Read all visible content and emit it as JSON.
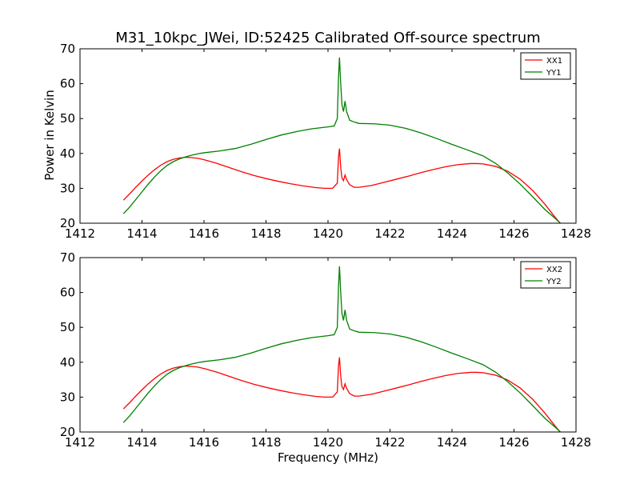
{
  "chart_data": {
    "type": "line",
    "title": "M31_10kpc_JWei, ID:52425 Calibrated Off-source spectrum",
    "xlabel": "Frequency (MHz)",
    "ylabel": "Power in Kelvin",
    "grid": false,
    "panels": [
      {
        "xlim": [
          1412,
          1428
        ],
        "ylim": [
          20,
          70
        ],
        "xticks": [
          "1412",
          "1414",
          "1416",
          "1418",
          "1420",
          "1422",
          "1424",
          "1426",
          "1428"
        ],
        "yticks": [
          "20",
          "30",
          "40",
          "50",
          "60",
          "70"
        ],
        "legend_position": "top-right",
        "series": [
          {
            "name": "XX1",
            "color": "#ff0000",
            "points": [
              [
                1413.4,
                26.6
              ],
              [
                1413.6,
                28.4
              ],
              [
                1413.8,
                30.3
              ],
              [
                1414.0,
                32.1
              ],
              [
                1414.2,
                33.8
              ],
              [
                1414.4,
                35.3
              ],
              [
                1414.6,
                36.6
              ],
              [
                1414.8,
                37.6
              ],
              [
                1415.0,
                38.3
              ],
              [
                1415.2,
                38.7
              ],
              [
                1415.4,
                38.9
              ],
              [
                1415.6,
                38.8
              ],
              [
                1415.8,
                38.6
              ],
              [
                1416.0,
                38.2
              ],
              [
                1416.4,
                37.2
              ],
              [
                1416.8,
                36.0
              ],
              [
                1417.2,
                34.8
              ],
              [
                1417.6,
                33.7
              ],
              [
                1418.0,
                32.8
              ],
              [
                1418.4,
                32.0
              ],
              [
                1418.8,
                31.3
              ],
              [
                1419.2,
                30.7
              ],
              [
                1419.6,
                30.2
              ],
              [
                1419.9,
                30.0
              ],
              [
                1420.15,
                30.0
              ],
              [
                1420.3,
                31.5
              ],
              [
                1420.34,
                39.0
              ],
              [
                1420.37,
                41.4
              ],
              [
                1420.41,
                36.0
              ],
              [
                1420.45,
                33.0
              ],
              [
                1420.5,
                32.2
              ],
              [
                1420.55,
                33.8
              ],
              [
                1420.6,
                32.5
              ],
              [
                1420.7,
                31.0
              ],
              [
                1420.85,
                30.3
              ],
              [
                1421.0,
                30.3
              ],
              [
                1421.4,
                30.8
              ],
              [
                1421.8,
                31.7
              ],
              [
                1422.2,
                32.6
              ],
              [
                1422.6,
                33.5
              ],
              [
                1423.0,
                34.5
              ],
              [
                1423.4,
                35.4
              ],
              [
                1423.8,
                36.2
              ],
              [
                1424.2,
                36.8
              ],
              [
                1424.6,
                37.1
              ],
              [
                1424.8,
                37.1
              ],
              [
                1425.0,
                37.0
              ],
              [
                1425.4,
                36.3
              ],
              [
                1425.8,
                34.9
              ],
              [
                1426.2,
                32.6
              ],
              [
                1426.6,
                29.4
              ],
              [
                1427.0,
                25.4
              ],
              [
                1427.3,
                22.0
              ],
              [
                1427.5,
                19.9
              ]
            ]
          },
          {
            "name": "YY1",
            "color": "#008000",
            "points": [
              [
                1413.4,
                22.7
              ],
              [
                1413.6,
                24.6
              ],
              [
                1413.8,
                26.8
              ],
              [
                1414.0,
                29.0
              ],
              [
                1414.2,
                31.2
              ],
              [
                1414.4,
                33.2
              ],
              [
                1414.6,
                35.0
              ],
              [
                1414.8,
                36.5
              ],
              [
                1415.0,
                37.6
              ],
              [
                1415.2,
                38.4
              ],
              [
                1415.4,
                39.0
              ],
              [
                1415.6,
                39.5
              ],
              [
                1415.8,
                39.9
              ],
              [
                1416.0,
                40.2
              ],
              [
                1416.5,
                40.7
              ],
              [
                1417.0,
                41.4
              ],
              [
                1417.5,
                42.6
              ],
              [
                1418.0,
                44.0
              ],
              [
                1418.5,
                45.3
              ],
              [
                1419.0,
                46.3
              ],
              [
                1419.5,
                47.1
              ],
              [
                1420.0,
                47.6
              ],
              [
                1420.2,
                47.9
              ],
              [
                1420.3,
                50.0
              ],
              [
                1420.34,
                62.0
              ],
              [
                1420.37,
                67.5
              ],
              [
                1420.41,
                60.0
              ],
              [
                1420.45,
                54.0
              ],
              [
                1420.5,
                52.0
              ],
              [
                1420.55,
                55.0
              ],
              [
                1420.6,
                52.0
              ],
              [
                1420.7,
                49.5
              ],
              [
                1420.85,
                49.0
              ],
              [
                1421.0,
                48.6
              ],
              [
                1421.5,
                48.5
              ],
              [
                1422.0,
                48.1
              ],
              [
                1422.5,
                47.2
              ],
              [
                1423.0,
                45.9
              ],
              [
                1423.5,
                44.3
              ],
              [
                1424.0,
                42.6
              ],
              [
                1424.5,
                41.0
              ],
              [
                1425.0,
                39.3
              ],
              [
                1425.4,
                37.2
              ],
              [
                1425.8,
                34.4
              ],
              [
                1426.2,
                31.2
              ],
              [
                1426.6,
                27.6
              ],
              [
                1427.0,
                23.9
              ],
              [
                1427.3,
                21.6
              ],
              [
                1427.5,
                20.0
              ]
            ]
          }
        ]
      },
      {
        "xlim": [
          1412,
          1428
        ],
        "ylim": [
          20,
          70
        ],
        "xticks": [
          "1412",
          "1414",
          "1416",
          "1418",
          "1420",
          "1422",
          "1424",
          "1426",
          "1428"
        ],
        "yticks": [
          "20",
          "30",
          "40",
          "50",
          "60",
          "70"
        ],
        "legend_position": "top-right",
        "series": [
          {
            "name": "XX2",
            "color": "#ff0000",
            "points": [
              [
                1413.4,
                26.6
              ],
              [
                1413.6,
                28.4
              ],
              [
                1413.8,
                30.3
              ],
              [
                1414.0,
                32.1
              ],
              [
                1414.2,
                33.8
              ],
              [
                1414.4,
                35.3
              ],
              [
                1414.6,
                36.6
              ],
              [
                1414.8,
                37.6
              ],
              [
                1415.0,
                38.3
              ],
              [
                1415.2,
                38.7
              ],
              [
                1415.4,
                38.9
              ],
              [
                1415.6,
                38.8
              ],
              [
                1415.8,
                38.6
              ],
              [
                1416.0,
                38.2
              ],
              [
                1416.4,
                37.2
              ],
              [
                1416.8,
                36.0
              ],
              [
                1417.2,
                34.8
              ],
              [
                1417.6,
                33.7
              ],
              [
                1418.0,
                32.8
              ],
              [
                1418.4,
                32.0
              ],
              [
                1418.8,
                31.3
              ],
              [
                1419.2,
                30.7
              ],
              [
                1419.6,
                30.2
              ],
              [
                1419.9,
                30.0
              ],
              [
                1420.15,
                30.0
              ],
              [
                1420.3,
                31.5
              ],
              [
                1420.34,
                39.0
              ],
              [
                1420.37,
                41.4
              ],
              [
                1420.41,
                36.0
              ],
              [
                1420.45,
                33.0
              ],
              [
                1420.5,
                32.2
              ],
              [
                1420.55,
                33.8
              ],
              [
                1420.6,
                32.5
              ],
              [
                1420.7,
                31.0
              ],
              [
                1420.85,
                30.3
              ],
              [
                1421.0,
                30.3
              ],
              [
                1421.4,
                30.8
              ],
              [
                1421.8,
                31.7
              ],
              [
                1422.2,
                32.6
              ],
              [
                1422.6,
                33.5
              ],
              [
                1423.0,
                34.5
              ],
              [
                1423.4,
                35.4
              ],
              [
                1423.8,
                36.2
              ],
              [
                1424.2,
                36.8
              ],
              [
                1424.6,
                37.1
              ],
              [
                1424.8,
                37.1
              ],
              [
                1425.0,
                37.0
              ],
              [
                1425.4,
                36.3
              ],
              [
                1425.8,
                34.9
              ],
              [
                1426.2,
                32.6
              ],
              [
                1426.6,
                29.4
              ],
              [
                1427.0,
                25.4
              ],
              [
                1427.3,
                22.0
              ],
              [
                1427.5,
                19.9
              ]
            ]
          },
          {
            "name": "YY2",
            "color": "#008000",
            "points": [
              [
                1413.4,
                22.7
              ],
              [
                1413.6,
                24.6
              ],
              [
                1413.8,
                26.8
              ],
              [
                1414.0,
                29.0
              ],
              [
                1414.2,
                31.2
              ],
              [
                1414.4,
                33.2
              ],
              [
                1414.6,
                35.0
              ],
              [
                1414.8,
                36.5
              ],
              [
                1415.0,
                37.6
              ],
              [
                1415.2,
                38.4
              ],
              [
                1415.4,
                39.0
              ],
              [
                1415.6,
                39.5
              ],
              [
                1415.8,
                39.9
              ],
              [
                1416.0,
                40.2
              ],
              [
                1416.5,
                40.7
              ],
              [
                1417.0,
                41.4
              ],
              [
                1417.5,
                42.6
              ],
              [
                1418.0,
                44.0
              ],
              [
                1418.5,
                45.3
              ],
              [
                1419.0,
                46.3
              ],
              [
                1419.5,
                47.1
              ],
              [
                1420.0,
                47.6
              ],
              [
                1420.2,
                47.9
              ],
              [
                1420.3,
                50.0
              ],
              [
                1420.34,
                62.0
              ],
              [
                1420.37,
                67.5
              ],
              [
                1420.41,
                60.0
              ],
              [
                1420.45,
                54.0
              ],
              [
                1420.5,
                52.0
              ],
              [
                1420.55,
                55.0
              ],
              [
                1420.6,
                52.0
              ],
              [
                1420.7,
                49.5
              ],
              [
                1420.85,
                49.0
              ],
              [
                1421.0,
                48.6
              ],
              [
                1421.5,
                48.5
              ],
              [
                1422.0,
                48.1
              ],
              [
                1422.5,
                47.2
              ],
              [
                1423.0,
                45.9
              ],
              [
                1423.5,
                44.3
              ],
              [
                1424.0,
                42.6
              ],
              [
                1424.5,
                41.0
              ],
              [
                1425.0,
                39.3
              ],
              [
                1425.4,
                37.2
              ],
              [
                1425.8,
                34.4
              ],
              [
                1426.2,
                31.2
              ],
              [
                1426.6,
                27.6
              ],
              [
                1427.0,
                23.9
              ],
              [
                1427.3,
                21.6
              ],
              [
                1427.5,
                20.0
              ]
            ]
          }
        ]
      }
    ]
  }
}
